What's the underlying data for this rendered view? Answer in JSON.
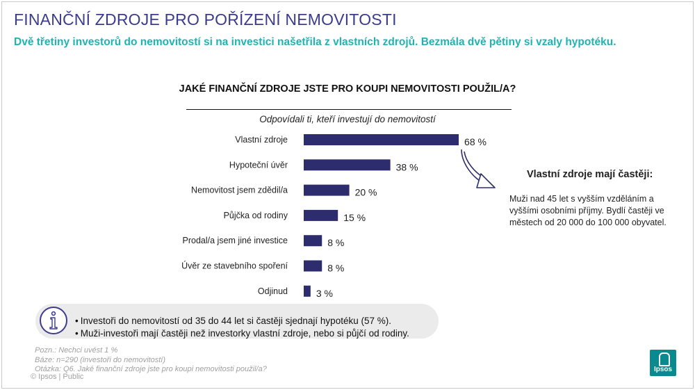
{
  "header": {
    "title": "FINANČNÍ ZDROJE PRO POŘÍZENÍ NEMOVITOSTI",
    "subtitle": "Dvě třetiny investorů do nemovitostí si na investici našetřila z vlastních zdrojů. Bezmála dvě pětiny si vzaly hypotéku."
  },
  "question": "JAKÉ FINANČNÍ ZDROJE JSTE PRO KOUPI NEMOVITOSTI POUŽIL/A?",
  "respondents": "Odpovídali ti, kteří investují do nemovitostí",
  "chart_data": {
    "type": "bar",
    "orientation": "horizontal",
    "categories": [
      "Vlastní zdroje",
      "Hypoteční úvěr",
      "Nemovitost jsem zdědil/a",
      "Půjčka od rodiny",
      "Prodal/a jsem jiné investice",
      "Úvěr ze stavebního spoření",
      "Odjinud"
    ],
    "values": [
      68,
      38,
      20,
      15,
      8,
      8,
      3
    ],
    "value_labels": [
      "68 %",
      "38 %",
      "20 %",
      "15 %",
      "8 %",
      "8 %",
      "3 %"
    ],
    "unit": "%",
    "xlim": [
      0,
      100
    ],
    "bar_color": "#2d2d6e",
    "grid": false,
    "legend": "none"
  },
  "callout": {
    "title": "Vlastní zdroje mají častěji:",
    "body": "Muži nad 45 let s vyšším vzděláním a vyššími osobními příjmy. Bydlí častěji ve městech od 20 000 do 100 000 obyvatel."
  },
  "info": {
    "icon": "info-icon",
    "bullets": [
      "Investoři do nemovitostí od 35 do 44 let si častěji sjednají hypotéku (57 %).",
      "Muži-investoři mají častěji než investorky vlastní zdroje, nebo si půjčí od rodiny."
    ]
  },
  "notes": {
    "note": "Pozn.: Nechci uvést 1 %",
    "base": "Báze: n=290 (investoři do nemovitostí)",
    "question_ref": "Otázka: Q6. Jaké finanční zdroje jste pro koupi nemovitosti použil/a?"
  },
  "footer": "© Ipsos | Public",
  "logo": {
    "text": "Ipsos"
  },
  "colors": {
    "title": "#3c3c8c",
    "subtitle": "#1fb3b3",
    "bar": "#2d2d6e",
    "logo": "#0a8a8e"
  }
}
